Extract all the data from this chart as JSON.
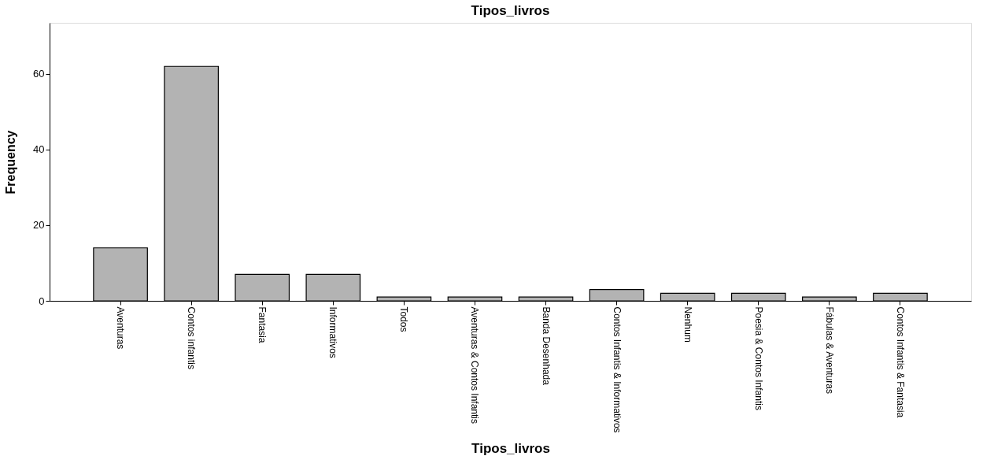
{
  "chart_data": {
    "type": "bar",
    "title": "Tipos_livros",
    "xlabel": "Tipos_livros",
    "ylabel": "Frequency",
    "categories": [
      "Aventuras",
      "Contos infantis",
      "Fantasia",
      "Informativos",
      "Todos",
      "Aventuras & Contos Infantis",
      "Banda Desenhada",
      "Contos Infantis & Informativos",
      "Nenhum",
      "Poesia & Contos Infantis",
      "Fábulas & Aventuras",
      "Contos Infantis & Fantasia"
    ],
    "values": [
      14,
      62,
      7,
      7,
      1,
      1,
      1,
      3,
      2,
      2,
      1,
      2
    ],
    "color": "#b3b3b3",
    "ylim": [
      0,
      73.5
    ],
    "yticks": [
      0,
      20,
      40,
      60
    ],
    "grid": false
  }
}
